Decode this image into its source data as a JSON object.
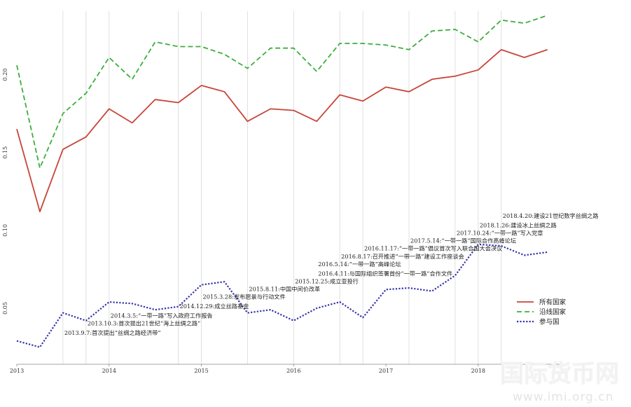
{
  "chart_data": {
    "type": "line",
    "title": "",
    "xlabel": "",
    "ylabel": "",
    "x": [
      2013.0,
      2013.25,
      2013.5,
      2013.75,
      2014.0,
      2014.25,
      2014.5,
      2014.75,
      2015.0,
      2015.25,
      2015.5,
      2015.75,
      2016.0,
      2016.25,
      2016.5,
      2016.75,
      2017.0,
      2017.25,
      2017.5,
      2017.75,
      2018.0,
      2018.25,
      2018.5,
      2018.75
    ],
    "xlim": [
      2013.0,
      2018.95
    ],
    "ylim": [
      0.014,
      0.238
    ],
    "x_ticks": [
      {
        "value": 2013,
        "label": "2013"
      },
      {
        "value": 2014,
        "label": "2014"
      },
      {
        "value": 2015,
        "label": "2015"
      },
      {
        "value": 2016,
        "label": "2016"
      },
      {
        "value": 2017,
        "label": "2017"
      },
      {
        "value": 2018,
        "label": "2018"
      }
    ],
    "y_ticks": [
      {
        "value": 0.05,
        "label": "0.05"
      },
      {
        "value": 0.1,
        "label": "0.10"
      },
      {
        "value": 0.15,
        "label": "0.15"
      },
      {
        "value": 0.2,
        "label": "0.20"
      }
    ],
    "vertical_grid_x": [
      2013.5,
      2013.75,
      2014.0,
      2014.75,
      2015.0,
      2015.5,
      2016.0,
      2016.5,
      2016.75,
      2017.25,
      2017.75,
      2018.0,
      2018.25
    ],
    "legend_position": "lower-right",
    "series": [
      {
        "name": "所有国家",
        "color": "#c8453a",
        "dash": "solid",
        "values": [
          0.165,
          0.112,
          0.152,
          0.16,
          0.178,
          0.169,
          0.184,
          0.182,
          0.193,
          0.189,
          0.17,
          0.178,
          0.177,
          0.17,
          0.187,
          0.183,
          0.192,
          0.189,
          0.197,
          0.199,
          0.203,
          0.216,
          0.211,
          0.216
        ]
      },
      {
        "name": "沿线国家",
        "color": "#3cae3c",
        "dash": "dashed",
        "values": [
          0.206,
          0.14,
          0.175,
          0.188,
          0.211,
          0.197,
          0.221,
          0.218,
          0.218,
          0.213,
          0.204,
          0.217,
          0.217,
          0.202,
          0.22,
          0.22,
          0.219,
          0.216,
          0.228,
          0.229,
          0.221,
          0.235,
          0.233,
          0.238
        ]
      },
      {
        "name": "参与国",
        "color": "#3333aa",
        "dash": "dotted",
        "values": [
          0.029,
          0.025,
          0.047,
          0.042,
          0.054,
          0.053,
          0.049,
          0.051,
          0.065,
          0.067,
          0.047,
          0.049,
          0.042,
          0.05,
          0.054,
          0.044,
          0.062,
          0.063,
          0.061,
          0.071,
          0.091,
          0.09,
          0.084,
          0.086
        ]
      }
    ],
    "annotations": [
      {
        "x": 2013.5,
        "y": 0.033,
        "text": "2013.9.7:首次提出“丝绸之路经济带”"
      },
      {
        "x": 2013.75,
        "y": 0.039,
        "text": "2013.10.3:首次提出21世纪“海上丝绸之路”"
      },
      {
        "x": 2014.0,
        "y": 0.044,
        "text": "2014.3.5:“一带一路”写入政府工作报告"
      },
      {
        "x": 2014.75,
        "y": 0.05,
        "text": "2014.12.29:成立丝路基金"
      },
      {
        "x": 2015.0,
        "y": 0.056,
        "text": "2015.3.28:发布愿景与行动文件"
      },
      {
        "x": 2015.5,
        "y": 0.061,
        "text": "2015.8.11:中国中间价改革"
      },
      {
        "x": 2016.0,
        "y": 0.066,
        "text": "2015.12.25:成立亚投行"
      },
      {
        "x": 2016.25,
        "y": 0.071,
        "text": "2016.4.11:与国际组织签署首份“一带一路”合作文件"
      },
      {
        "x": 2016.25,
        "y": 0.077,
        "text": "2016.5.14:“一带一路”高峰论坛"
      },
      {
        "x": 2016.5,
        "y": 0.082,
        "text": "2016.8.17:召开推进“一带一路”建设工作座谈会"
      },
      {
        "x": 2016.75,
        "y": 0.087,
        "text": "2016.11.17:“一带一路”倡议首次写入联合国大会决议"
      },
      {
        "x": 2017.25,
        "y": 0.092,
        "text": "2017.5.14:“一带一路”国际合作高峰论坛"
      },
      {
        "x": 2017.75,
        "y": 0.097,
        "text": "2017.10.24:“一带一路”写入党章"
      },
      {
        "x": 2018.0,
        "y": 0.102,
        "text": "2018.1.26:建设冰上丝绸之路"
      },
      {
        "x": 2018.25,
        "y": 0.108,
        "text": "2018.4.20:建设21世纪数字丝绸之路"
      }
    ]
  },
  "watermark": {
    "text": "国际货币网",
    "url": "www.imi.org.cn"
  }
}
